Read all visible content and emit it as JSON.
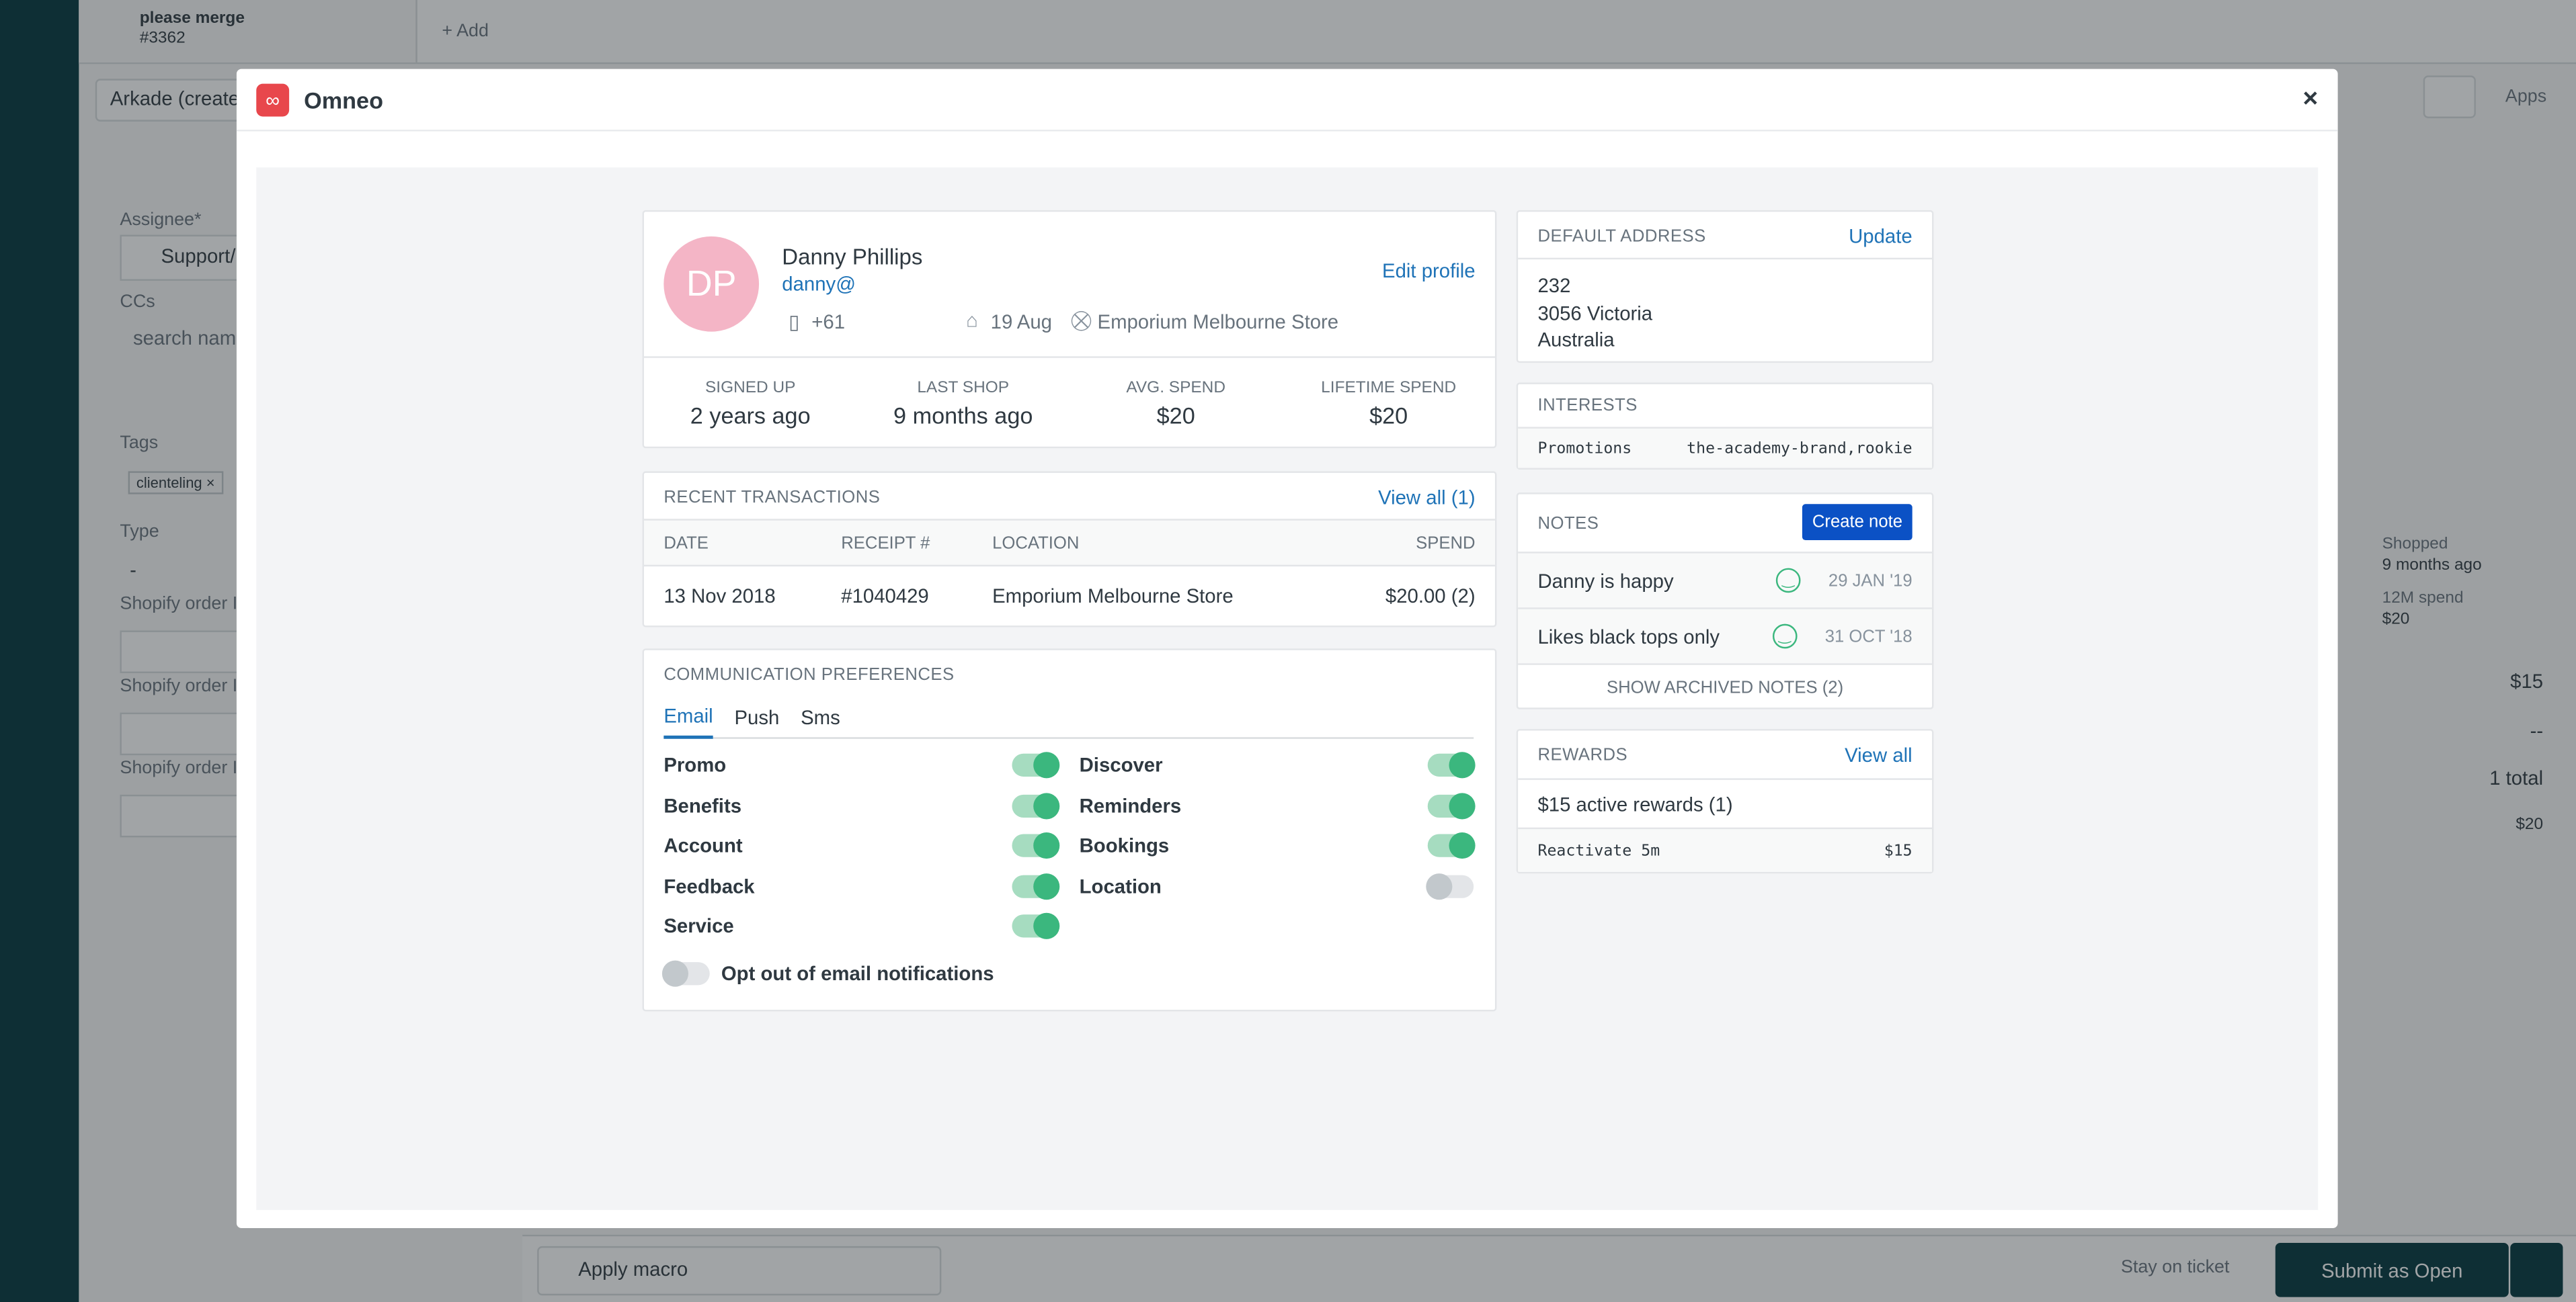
{
  "background": {
    "tab_title": "please merge",
    "tab_id": "#3362",
    "add": "+ Add",
    "requester": "Arkade (create",
    "assignee_label": "Assignee*",
    "assignee": "Support/",
    "ccs_label": "CCs",
    "ccs_placeholder": "search nam",
    "tags_label": "Tags",
    "tag": "clienteling ×",
    "type_label": "Type",
    "type_value": "-",
    "shopify_fields": [
      "Shopify order II",
      "Shopify order II",
      "Shopify order II"
    ],
    "apply_macro": "Apply macro",
    "stay": "Stay on ticket",
    "submit": "Submit as Open",
    "apps": "Apps",
    "side": {
      "shopped": "Shopped",
      "shopped_when": "9 months ago",
      "spend": "12M spend",
      "spend_value": "$20",
      "rows": [
        "$15",
        "--",
        "1 total",
        "$20"
      ]
    }
  },
  "modal": {
    "title": "Omneo",
    "close": "×"
  },
  "profile": {
    "initials": "DP",
    "name": "Danny Phillips",
    "email": "danny@",
    "phone": "+61",
    "birthday": "19 Aug",
    "store": "Emporium Melbourne Store",
    "edit": "Edit profile",
    "stats": [
      {
        "label": "SIGNED UP",
        "value": "2 years ago"
      },
      {
        "label": "LAST SHOP",
        "value": "9 months ago"
      },
      {
        "label": "AVG. SPEND",
        "value": "$20"
      },
      {
        "label": "LIFETIME SPEND",
        "value": "$20"
      }
    ]
  },
  "transactions": {
    "title": "RECENT TRANSACTIONS",
    "view_all": "View all (1)",
    "columns": [
      "DATE",
      "RECEIPT #",
      "LOCATION",
      "SPEND"
    ],
    "rows": [
      [
        "13 Nov 2018",
        "#1040429",
        "Emporium Melbourne Store",
        "$20.00 (2)"
      ]
    ]
  },
  "preferences": {
    "title": "COMMUNICATION PREFERENCES",
    "tabs": [
      "Email",
      "Push",
      "Sms"
    ],
    "active_tab": 0,
    "columns": [
      [
        {
          "label": "Promo",
          "on": true
        },
        {
          "label": "Benefits",
          "on": true
        },
        {
          "label": "Account",
          "on": true
        },
        {
          "label": "Feedback",
          "on": true
        },
        {
          "label": "Service",
          "on": true
        }
      ],
      [
        {
          "label": "Discover",
          "on": true
        },
        {
          "label": "Reminders",
          "on": true
        },
        {
          "label": "Bookings",
          "on": true
        },
        {
          "label": "Location",
          "on": false
        }
      ]
    ],
    "opt_out": {
      "label": "Opt out of email notifications",
      "on": false
    }
  },
  "address": {
    "title": "DEFAULT ADDRESS",
    "update": "Update",
    "lines": [
      "232",
      "3056 Victoria",
      "Australia"
    ]
  },
  "interests": {
    "title": "INTERESTS",
    "rows": [
      [
        "Promotions",
        "the-academy-brand,rookie"
      ]
    ]
  },
  "notes": {
    "title": "NOTES",
    "create": "Create note",
    "items": [
      {
        "text": "Danny is happy",
        "date": "29 JAN '19"
      },
      {
        "text": "Likes black tops only",
        "date": "31 OCT '18"
      }
    ],
    "archived": "SHOW ARCHIVED NOTES (2)"
  },
  "rewards": {
    "title": "REWARDS",
    "view_all": "View all",
    "summary": "$15 active rewards (1)",
    "items": [
      [
        "Reactivate 5m",
        "$15"
      ]
    ]
  }
}
